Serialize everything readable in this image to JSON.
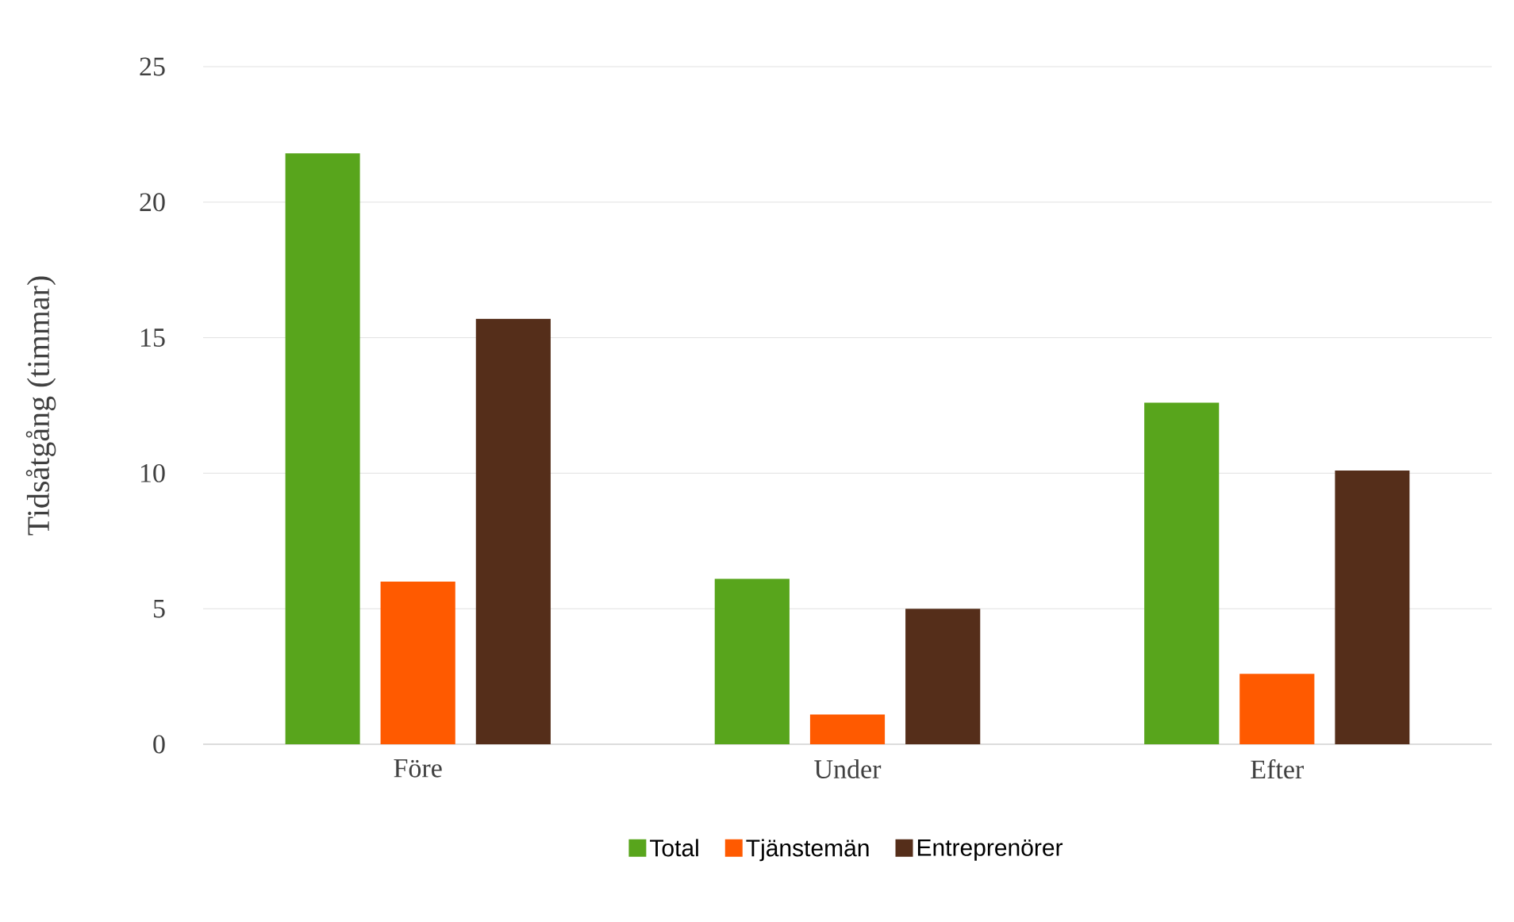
{
  "chart_data": {
    "type": "bar",
    "ylabel": "Tidsåtgång (timmar)",
    "categories": [
      "Före",
      "Under",
      "Efter"
    ],
    "series": [
      {
        "name": "Total",
        "color": "#58a51c",
        "values": [
          21.8,
          6.1,
          12.6
        ]
      },
      {
        "name": "Tjänstemän",
        "color": "#ff5a00",
        "values": [
          6.0,
          1.1,
          2.6
        ]
      },
      {
        "name": "Entreprenörer",
        "color": "#552e1a",
        "values": [
          15.7,
          5.0,
          10.1
        ]
      }
    ],
    "ylim": [
      0,
      25
    ],
    "yticks": [
      0,
      5,
      10,
      15,
      20,
      25
    ],
    "grid": "y",
    "legend": "bottom"
  }
}
